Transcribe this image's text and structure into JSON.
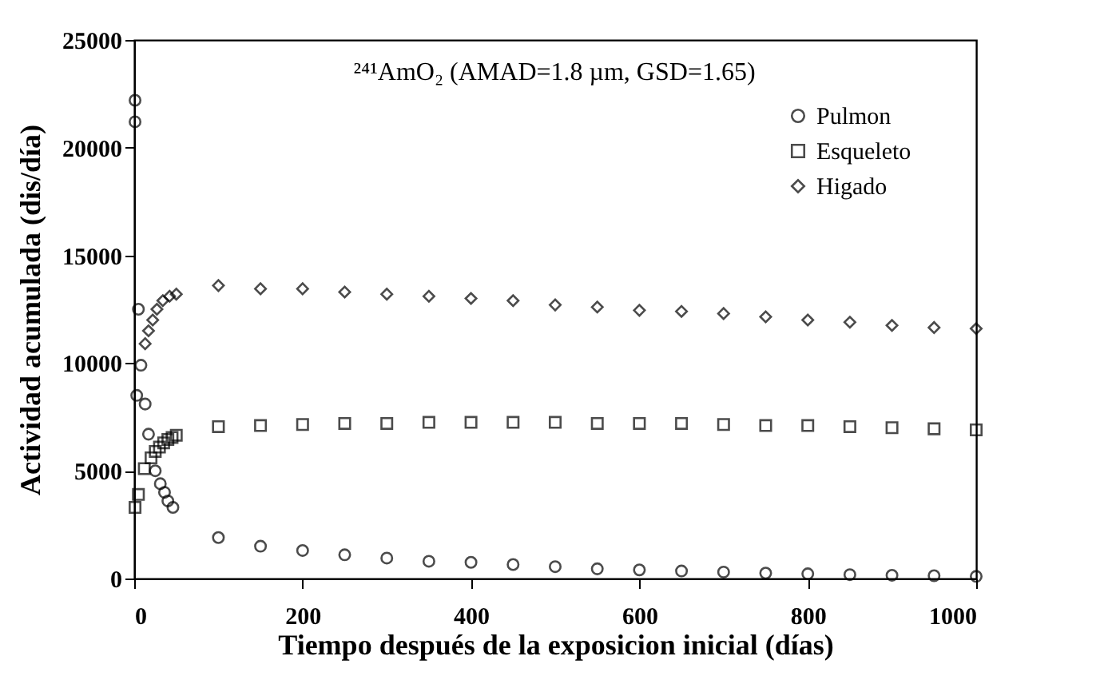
{
  "chart_data": {
    "type": "scatter",
    "xlabel": "Tiempo después de la exposicion inicial (días)",
    "ylabel": "Actividad acumulada (dis/día)",
    "annotations": [
      "²⁴¹AmO₂ (AMAD=1.8 µm, GSD=1.65)"
    ],
    "xlim": [
      0,
      1000
    ],
    "xticks": [
      0,
      200,
      400,
      600,
      800,
      1000
    ],
    "ylim": [
      0,
      25000
    ],
    "yticks": [
      0,
      5000,
      10000,
      15000,
      20000,
      25000
    ],
    "grid": false,
    "legend": "top right",
    "series": [
      {
        "name": "Pulmon",
        "color": "#000000",
        "marker": "circle",
        "x": [
          1,
          1,
          3,
          5,
          8,
          13,
          17,
          25,
          31,
          36,
          40,
          46,
          100,
          150,
          200,
          250,
          300,
          350,
          400,
          450,
          500,
          550,
          600,
          650,
          700,
          750,
          800,
          850,
          900,
          950,
          1000
        ],
        "values": [
          22200,
          21200,
          8500,
          12500,
          9900,
          8100,
          6700,
          5000,
          4400,
          4000,
          3600,
          3300,
          1900,
          1500,
          1300,
          1100,
          950,
          800,
          750,
          650,
          550,
          450,
          400,
          350,
          300,
          250,
          220,
          180,
          150,
          130,
          100
        ]
      },
      {
        "name": "Esqueleto",
        "color": "#000000",
        "marker": "square",
        "x": [
          1,
          5,
          12,
          20,
          25,
          30,
          35,
          40,
          45,
          50,
          100,
          150,
          200,
          250,
          300,
          350,
          400,
          450,
          500,
          550,
          600,
          650,
          700,
          750,
          800,
          850,
          900,
          950,
          1000
        ],
        "values": [
          3300,
          3900,
          5100,
          5600,
          5900,
          6100,
          6300,
          6450,
          6550,
          6650,
          7050,
          7100,
          7150,
          7200,
          7200,
          7250,
          7250,
          7250,
          7250,
          7200,
          7200,
          7200,
          7150,
          7100,
          7100,
          7050,
          7000,
          6950,
          6900
        ]
      },
      {
        "name": "Higado",
        "color": "#000000",
        "marker": "diamond",
        "x": [
          13,
          17,
          22,
          27,
          34,
          42,
          50,
          100,
          150,
          200,
          250,
          300,
          350,
          400,
          450,
          500,
          550,
          600,
          650,
          700,
          750,
          800,
          850,
          900,
          950,
          1000
        ],
        "values": [
          10900,
          11500,
          12000,
          12500,
          12900,
          13100,
          13200,
          13600,
          13450,
          13450,
          13300,
          13200,
          13100,
          13000,
          12900,
          12700,
          12600,
          12450,
          12400,
          12300,
          12150,
          12000,
          11900,
          11750,
          11650,
          11600
        ]
      }
    ]
  }
}
